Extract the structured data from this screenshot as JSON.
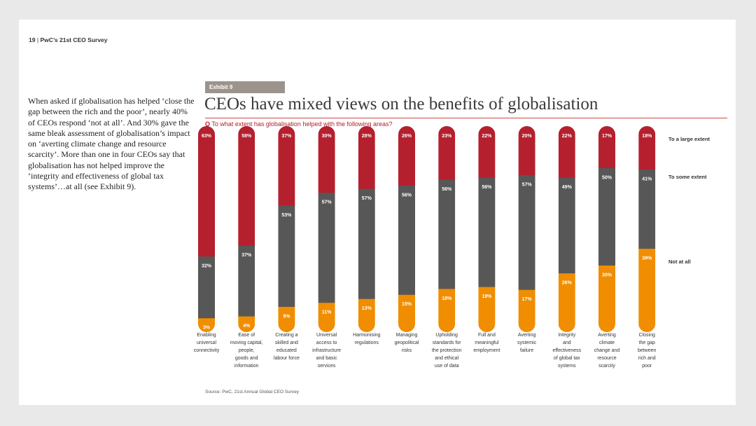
{
  "header": {
    "page_number": "19",
    "separator": "|",
    "publication": "PwC’s 21st CEO Survey"
  },
  "body_text": "When asked if globalisation has helped ‘close the gap between the rich and the poor’, nearly 40% of CEOs respond ‘not at all’. And 30% gave the same bleak assessment of globalisation’s impact on ‘averting climate change and resource scarcity’. More than one in four CEOs say that globalisation has not helped improve the ‘integrity and effectiveness of global tax systems’…at all (see Exhibit 9).",
  "exhibit": {
    "tag": "Exhibit 9",
    "title": "CEOs have mixed views on the benefits of globalisation",
    "question_prefix": "Q",
    "question": "To what extent has globalisation helped with the following areas?"
  },
  "source": "Source: PwC, 21st Annual Global CEO Survey",
  "colors": {
    "large": "#b5202e",
    "some": "#575757",
    "notatall": "#f08d00",
    "tag": "#9c948c"
  },
  "chart_data": {
    "type": "bar",
    "stacked": true,
    "categories": [
      [
        "Enabling",
        "universal",
        "connectivity"
      ],
      [
        "Ease of",
        "moving capital,",
        "people,",
        "goods and",
        "information"
      ],
      [
        "Creating a",
        "skilled and",
        "educated",
        "labour force"
      ],
      [
        "Universal",
        "access to",
        "infrastructure",
        "and basic",
        "services"
      ],
      [
        "Harmonising",
        "regulations"
      ],
      [
        "Managing",
        "geopolitical",
        "risks"
      ],
      [
        "Upholding",
        "standards for",
        "the protection",
        "and ethical",
        "use of data"
      ],
      [
        "Full and",
        "meaningful",
        "employment"
      ],
      [
        "Averting",
        "systemic",
        "failure"
      ],
      [
        "Integrity",
        "and",
        "effectiveness",
        "of global tax",
        "systems"
      ],
      [
        "Averting",
        "climate",
        "change and",
        "resource",
        "scarcity"
      ],
      [
        "Closing",
        "the gap",
        "between",
        "rich and",
        "poor"
      ]
    ],
    "series": [
      {
        "name": "Not at all",
        "values": [
          3,
          4,
          9,
          11,
          13,
          15,
          18,
          19,
          17,
          26,
          30,
          39
        ]
      },
      {
        "name": "To some extent",
        "values": [
          32,
          37,
          53,
          57,
          57,
          56,
          56,
          56,
          57,
          49,
          50,
          41
        ]
      },
      {
        "name": "To a large extent",
        "values": [
          63,
          58,
          37,
          30,
          28,
          26,
          23,
          22,
          20,
          22,
          17,
          18
        ]
      }
    ],
    "value_suffix": "%",
    "legend_placement": "right",
    "grid": false
  }
}
